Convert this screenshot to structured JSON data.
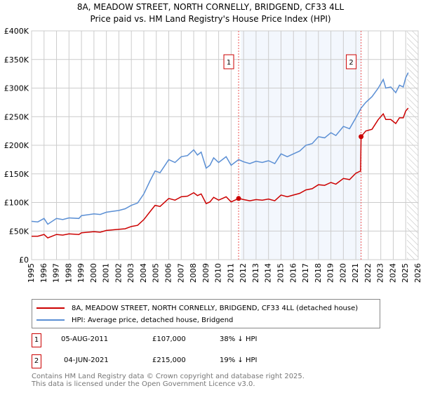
{
  "chart_data": {
    "type": "line",
    "title": "8A, MEADOW STREET, NORTH CORNELLY, BRIDGEND, CF33 4LL",
    "subtitle": "Price paid vs. HM Land Registry's House Price Index (HPI)",
    "xlim": [
      1995,
      2026
    ],
    "ylim": [
      0,
      400000
    ],
    "x_ticks": [
      1995,
      1996,
      1997,
      1998,
      1999,
      2000,
      2001,
      2002,
      2003,
      2004,
      2005,
      2006,
      2007,
      2008,
      2009,
      2010,
      2011,
      2012,
      2013,
      2014,
      2015,
      2016,
      2017,
      2018,
      2019,
      2020,
      2021,
      2022,
      2023,
      2024,
      2025,
      2026
    ],
    "y_ticks": [
      0,
      50000,
      100000,
      150000,
      200000,
      250000,
      300000,
      350000,
      400000
    ],
    "y_tick_labels": [
      "£0",
      "£50K",
      "£100K",
      "£150K",
      "£200K",
      "£250K",
      "£300K",
      "£350K",
      "£400K"
    ],
    "grid": true,
    "shaded_range": [
      2011.6,
      2021.42
    ],
    "forecast_hatch_from": 2025.1,
    "series": [
      {
        "name": "8A, MEADOW STREET, NORTH CORNELLY, BRIDGEND, CF33 4LL (detached house)",
        "color": "#cc0000",
        "x": [
          1995,
          1995.5,
          1996,
          1996.3,
          1997,
          1997.5,
          1998,
          1998.8,
          1999,
          2000,
          2000.5,
          2001,
          2002,
          2002.5,
          2003,
          2003.5,
          2004,
          2004.5,
          2004.9,
          2005.3,
          2006,
          2006.5,
          2007,
          2007.5,
          2008,
          2008.3,
          2008.6,
          2009,
          2009.3,
          2009.6,
          2010,
          2010.6,
          2011,
          2011.6,
          2012,
          2012.5,
          2013,
          2013.5,
          2014,
          2014.5,
          2015,
          2015.5,
          2016,
          2016.5,
          2017,
          2017.5,
          2018,
          2018.5,
          2019,
          2019.4,
          2020,
          2020.5,
          2021,
          2021.38,
          2021.42,
          2021.8,
          2022.3,
          2022.8,
          2023.2,
          2023.4,
          2023.8,
          2024.2,
          2024.5,
          2024.8,
          2025,
          2025.2
        ],
        "values": [
          41000,
          41000,
          44000,
          38000,
          44000,
          43000,
          45000,
          44000,
          47000,
          49000,
          48000,
          51000,
          53000,
          54000,
          58000,
          60000,
          70000,
          84000,
          95000,
          93000,
          107000,
          104000,
          110000,
          111000,
          117000,
          112000,
          115000,
          98000,
          101000,
          109000,
          104000,
          110000,
          101000,
          107000,
          105000,
          103000,
          105000,
          104000,
          106000,
          103000,
          113000,
          110000,
          113000,
          116000,
          122000,
          124000,
          131000,
          130000,
          135000,
          132000,
          142000,
          140000,
          151000,
          155000,
          215000,
          225000,
          228000,
          245000,
          255000,
          245000,
          245000,
          238000,
          248000,
          248000,
          260000,
          265000
        ]
      },
      {
        "name": "HPI: Average price, detached house, Bridgend",
        "color": "#5b8fd4",
        "x": [
          1995,
          1995.5,
          1996,
          1996.3,
          1997,
          1997.5,
          1998,
          1998.8,
          1999,
          2000,
          2000.5,
          2001,
          2002,
          2002.5,
          2003,
          2003.5,
          2004,
          2004.5,
          2004.9,
          2005.3,
          2006,
          2006.5,
          2007,
          2007.5,
          2008,
          2008.3,
          2008.6,
          2009,
          2009.3,
          2009.6,
          2010,
          2010.6,
          2011,
          2011.6,
          2012,
          2012.5,
          2013,
          2013.5,
          2014,
          2014.5,
          2015,
          2015.5,
          2016,
          2016.5,
          2017,
          2017.5,
          2018,
          2018.5,
          2019,
          2019.4,
          2020,
          2020.5,
          2021,
          2021.42,
          2021.8,
          2022.3,
          2022.8,
          2023.2,
          2023.4,
          2023.8,
          2024.2,
          2024.5,
          2024.8,
          2025,
          2025.2
        ],
        "values": [
          67000,
          66000,
          72000,
          62000,
          72000,
          70000,
          73000,
          72000,
          77000,
          80000,
          79000,
          83000,
          86000,
          89000,
          95000,
          99000,
          115000,
          138000,
          155000,
          152000,
          175000,
          170000,
          180000,
          182000,
          192000,
          183000,
          188000,
          160000,
          165000,
          178000,
          170000,
          180000,
          165000,
          175000,
          171000,
          168000,
          172000,
          170000,
          173000,
          168000,
          185000,
          180000,
          185000,
          190000,
          200000,
          203000,
          215000,
          213000,
          222000,
          217000,
          233000,
          229000,
          248000,
          265000,
          275000,
          285000,
          300000,
          315000,
          300000,
          302000,
          292000,
          305000,
          302000,
          318000,
          327000
        ]
      }
    ],
    "annotations": [
      {
        "label": "1",
        "x": 2011.6,
        "value": 107000
      },
      {
        "label": "2",
        "x": 2021.42,
        "value": 215000
      }
    ]
  },
  "legend": {
    "red_label": "8A, MEADOW STREET, NORTH CORNELLY, BRIDGEND, CF33 4LL (detached house)",
    "blue_label": "HPI: Average price, detached house, Bridgend"
  },
  "transactions": [
    {
      "num": "1",
      "date": "05-AUG-2011",
      "price": "£107,000",
      "hpi": "38% ↓ HPI"
    },
    {
      "num": "2",
      "date": "04-JUN-2021",
      "price": "£215,000",
      "hpi": "19% ↓ HPI"
    }
  ],
  "footer": {
    "line1": "Contains HM Land Registry data © Crown copyright and database right 2025.",
    "line2": "This data is licensed under the Open Government Licence v3.0."
  }
}
